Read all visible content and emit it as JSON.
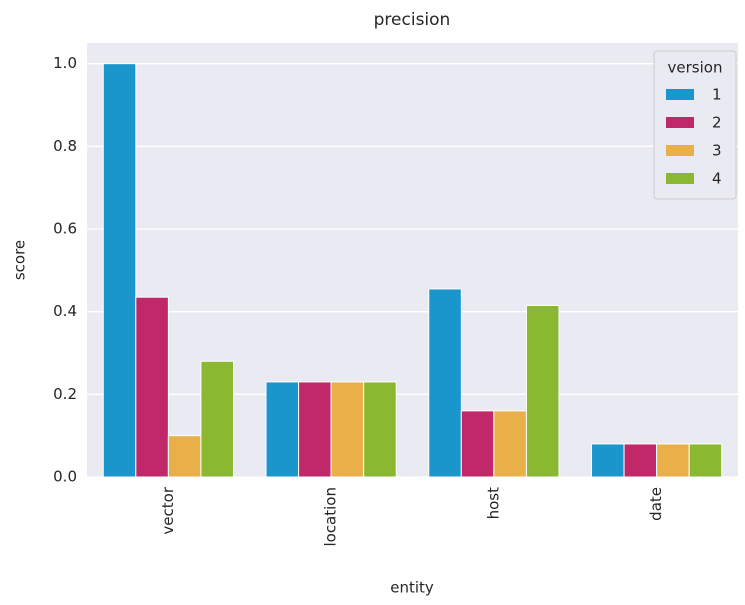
{
  "chart_data": {
    "type": "bar",
    "title": "precision",
    "x_label": "entity",
    "y_label": "score",
    "categories": [
      "vector",
      "location",
      "host",
      "date"
    ],
    "legend_title": "version",
    "legend_position": "upper right",
    "grid": true,
    "series": [
      {
        "name": "1",
        "color": "#1a96cc",
        "values": [
          1.0,
          0.23,
          0.455,
          0.08
        ]
      },
      {
        "name": "2",
        "color": "#c0286a",
        "values": [
          0.435,
          0.23,
          0.16,
          0.08
        ]
      },
      {
        "name": "3",
        "color": "#e9b04a",
        "values": [
          0.1,
          0.23,
          0.16,
          0.08
        ]
      },
      {
        "name": "4",
        "color": "#8ab830",
        "values": [
          0.28,
          0.23,
          0.415,
          0.08
        ]
      }
    ],
    "ylim": [
      0,
      1.05
    ],
    "yticks": [
      {
        "value": 0,
        "label": "0.0"
      },
      0.2,
      0.4,
      0.6,
      0.8,
      {
        "value": 1,
        "label": "1.0"
      }
    ]
  }
}
